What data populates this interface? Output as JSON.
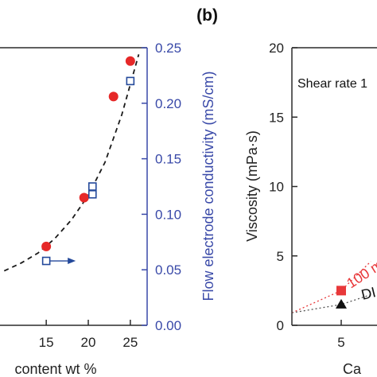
{
  "chart_data": [
    {
      "type": "scatter",
      "panel_label": "",
      "xlabel": "content wt %",
      "ylabel_right": "Flow electrode conductivity (mS/cm)",
      "xlim": [
        9.5,
        27
      ],
      "ylim_right": [
        0,
        0.25
      ],
      "x_ticks": [
        "15",
        "20",
        "25"
      ],
      "y_right_ticks": [
        "0.00",
        "0.05",
        "0.10",
        "0.15",
        "0.20",
        "0.25"
      ],
      "colors": {
        "axis": "#2b2b2b",
        "right_axis": "#3949a8",
        "filled": "#e62828",
        "open": "#23489a",
        "fit": "#1a1a1a"
      },
      "series": [
        {
          "style": "filled-circle",
          "x": [
            15,
            19.5,
            23,
            25
          ],
          "y": [
            0.071,
            0.115,
            0.206,
            0.238
          ]
        },
        {
          "style": "open-square",
          "x": [
            15,
            20.5,
            20.5,
            25
          ],
          "y": [
            0.058,
            0.118,
            0.125,
            0.22
          ]
        }
      ],
      "fit_curve": {
        "style": "dashed",
        "x": [
          10,
          12,
          14,
          16,
          18,
          20,
          22,
          24,
          26
        ],
        "y": [
          0.049,
          0.056,
          0.065,
          0.078,
          0.095,
          0.117,
          0.147,
          0.19,
          0.244
        ]
      },
      "arrow": {
        "from_x": 15,
        "to_x": 18.5,
        "y": 0.058,
        "direction": "right"
      }
    },
    {
      "type": "scatter",
      "panel_label": "(b)",
      "annotation": "Shear rate 1",
      "xlabel": "Ca",
      "ylabel": "Viscosity (mPa·s)",
      "xlim": [
        0,
        8
      ],
      "ylim": [
        0,
        20
      ],
      "x_ticks": [
        "5"
      ],
      "y_ticks": [
        "0",
        "5",
        "10",
        "15",
        "20"
      ],
      "colors": {
        "axis": "#2b2b2b",
        "red": "#e8383a",
        "black": "#111111"
      },
      "series": [
        {
          "name": "100 m",
          "style": "filled-square",
          "x": [
            0,
            5,
            8
          ],
          "y": [
            0.9,
            2.5,
            4.6
          ],
          "line": "dotted"
        },
        {
          "name": "DI",
          "style": "filled-triangle",
          "x": [
            0,
            5,
            8
          ],
          "y": [
            0.9,
            1.5,
            2.2
          ],
          "line": "dotted"
        }
      ]
    }
  ]
}
